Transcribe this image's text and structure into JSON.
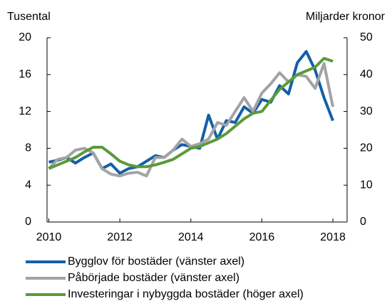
{
  "chart_data": {
    "type": "line",
    "ylabel": "Tusental",
    "y2label": "Miljarder kronor",
    "x": [
      2010,
      2010.25,
      2010.5,
      2010.75,
      2011,
      2011.25,
      2011.5,
      2011.75,
      2012,
      2012.25,
      2012.5,
      2012.75,
      2013,
      2013.25,
      2013.5,
      2013.75,
      2014,
      2014.25,
      2014.5,
      2014.75,
      2015,
      2015.25,
      2015.5,
      2015.75,
      2016,
      2016.25,
      2016.5,
      2016.75,
      2017,
      2017.25,
      2017.5,
      2017.75,
      2018
    ],
    "series": [
      {
        "name": "Bygglov för bostäder (vänster axel)",
        "color": "#1360a8",
        "axis": "y",
        "values": [
          6.5,
          6.7,
          7.0,
          6.4,
          7.0,
          7.5,
          5.8,
          6.3,
          5.3,
          5.8,
          6.0,
          6.6,
          7.2,
          7.0,
          7.8,
          8.4,
          8.2,
          8.0,
          11.6,
          9.0,
          11.0,
          10.8,
          12.5,
          11.8,
          13.3,
          13.0,
          14.8,
          13.9,
          17.3,
          18.5,
          16.5,
          13.5,
          11.0
        ]
      },
      {
        "name": "Påbörjade bostäder (vänster axel)",
        "color": "#a3a3a3",
        "axis": "y",
        "values": [
          5.8,
          6.8,
          7.0,
          7.8,
          8.0,
          7.5,
          5.8,
          5.2,
          5.0,
          5.3,
          5.4,
          5.0,
          7.0,
          7.0,
          7.8,
          9.0,
          8.2,
          8.5,
          9.0,
          10.8,
          10.5,
          12.0,
          13.5,
          12.0,
          14.0,
          15.0,
          16.2,
          15.2,
          16.0,
          15.8,
          14.5,
          17.2,
          12.5
        ]
      },
      {
        "name": "Investeringar i nybyggda bostäder (höger axel)",
        "color": "#5a9a3a",
        "axis": "y2",
        "values": [
          14.5,
          15.5,
          16.5,
          17.5,
          19,
          20.3,
          20.3,
          18.5,
          16.5,
          15.5,
          15,
          15,
          15.5,
          16.2,
          17,
          18.5,
          20,
          20.5,
          21.5,
          22.5,
          24,
          26,
          28,
          29.5,
          30,
          33,
          36,
          38,
          40,
          41,
          42,
          44.4,
          43.6
        ]
      }
    ],
    "xlim": [
      2009.95,
      2018.4
    ],
    "xticks": [
      2010,
      2012,
      2014,
      2016,
      2018
    ],
    "ylim": [
      0,
      20
    ],
    "yticks": [
      0,
      4,
      8,
      12,
      16,
      20
    ],
    "y2lim": [
      0,
      50
    ],
    "y2ticks": [
      0,
      10,
      20,
      30,
      40,
      50
    ]
  }
}
